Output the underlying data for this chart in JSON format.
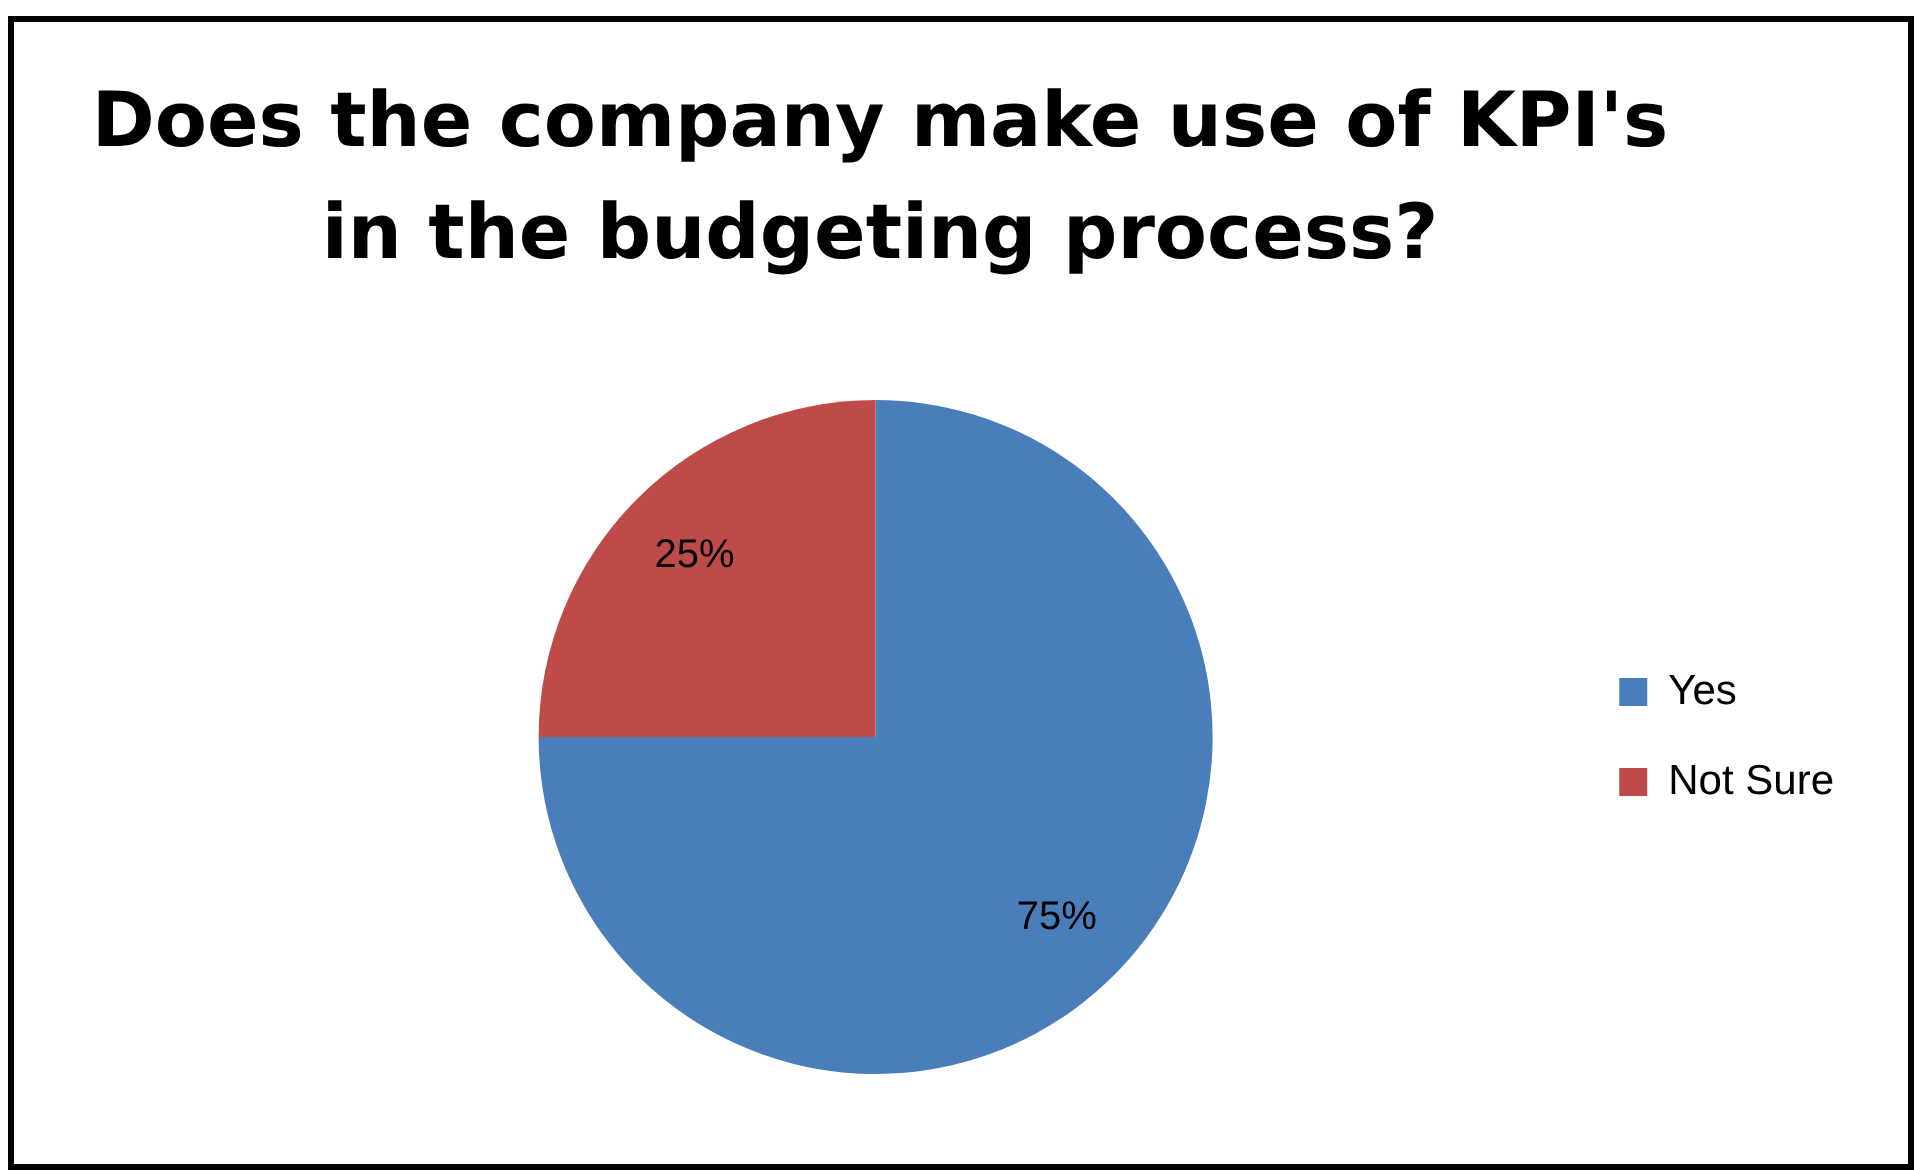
{
  "chart_data": {
    "type": "pie",
    "title": "Does the company make use of KPI's in the budgeting process?",
    "categories": [
      "Yes",
      "Not Sure"
    ],
    "values": [
      75,
      25
    ],
    "colors": [
      "#4a7ebb",
      "#be4b48"
    ],
    "value_labels": [
      "75%",
      "25%"
    ],
    "legend": "right"
  }
}
